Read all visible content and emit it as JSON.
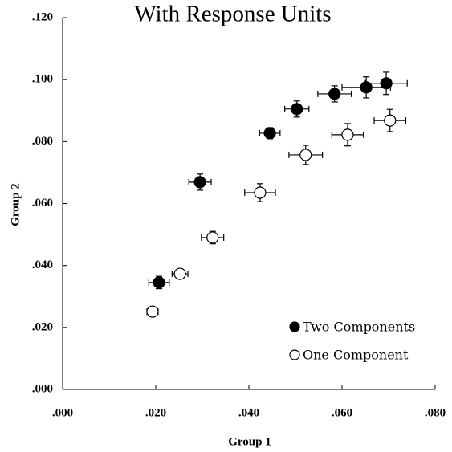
{
  "chart_data": {
    "type": "scatter",
    "title": "With Response Units",
    "x_label": "Group 1",
    "y_label": "Group 2",
    "xlim": [
      0,
      0.08
    ],
    "ylim": [
      0,
      0.12
    ],
    "xticks": [
      {
        "value": 0,
        "label": ".000"
      },
      {
        "value": 0.02,
        "label": ".020"
      },
      {
        "value": 0.04,
        "label": ".040"
      },
      {
        "value": 0.06,
        "label": ".060"
      },
      {
        "value": 0.08,
        "label": ".080"
      }
    ],
    "yticks": [
      {
        "value": 0,
        "label": ".000"
      },
      {
        "value": 0.02,
        "label": ".020"
      },
      {
        "value": 0.04,
        "label": ".040"
      },
      {
        "value": 0.06,
        "label": ".060"
      },
      {
        "value": 0.08,
        "label": ".080"
      },
      {
        "value": 0.1,
        "label": ".100"
      },
      {
        "value": 0.12,
        "label": ".120"
      }
    ],
    "legend_position": "lower right",
    "series": [
      {
        "name": "Two Components",
        "color": "#000000",
        "marker_fill": "#000000",
        "x": [
          0.0207,
          0.0295,
          0.0445,
          0.0503,
          0.0584,
          0.0652,
          0.0695
        ],
        "values": [
          0.0345,
          0.0669,
          0.0827,
          0.0905,
          0.0954,
          0.0975,
          0.0988
        ],
        "x_err": [
          0.0022,
          0.0024,
          0.0022,
          0.0026,
          0.0036,
          0.0052,
          0.0045
        ],
        "y_err": [
          0.002,
          0.0026,
          0.0018,
          0.0026,
          0.0026,
          0.0034,
          0.0036
        ]
      },
      {
        "name": "One Component",
        "color": "#000000",
        "marker_fill": "#ffffff",
        "x": [
          0.0193,
          0.0252,
          0.0322,
          0.0424,
          0.0522,
          0.0612,
          0.0703
        ],
        "values": [
          0.0251,
          0.0373,
          0.049,
          0.0635,
          0.0757,
          0.0822,
          0.0868
        ],
        "x_err": [
          0.0012,
          0.0017,
          0.0024,
          0.0033,
          0.0036,
          0.0034,
          0.0034
        ],
        "y_err": [
          0.0013,
          0.0016,
          0.002,
          0.0029,
          0.0031,
          0.0036,
          0.0036
        ]
      }
    ]
  }
}
